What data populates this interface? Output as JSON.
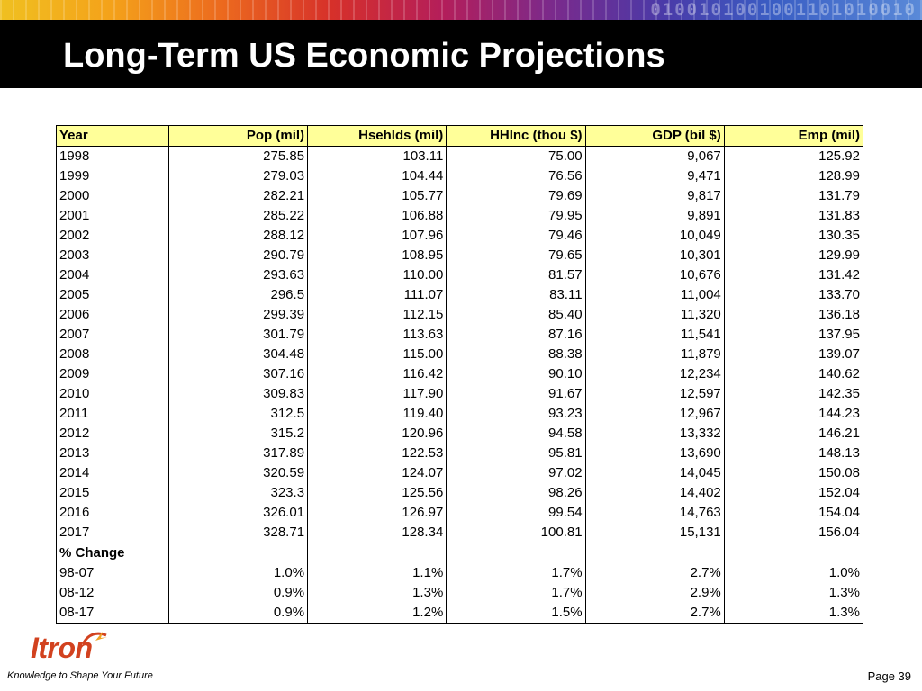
{
  "header": {
    "title": "Long-Term US Economic Projections",
    "binary_text": "0100101001001101010010"
  },
  "table": {
    "columns": [
      "Year",
      "Pop (mil)",
      "Hsehlds (mil)",
      "HHInc (thou $)",
      "GDP (bil $)",
      "Emp (mil)"
    ],
    "rows": [
      [
        "1998",
        "275.85",
        "103.11",
        "75.00",
        "9,067",
        "125.92"
      ],
      [
        "1999",
        "279.03",
        "104.44",
        "76.56",
        "9,471",
        "128.99"
      ],
      [
        "2000",
        "282.21",
        "105.77",
        "79.69",
        "9,817",
        "131.79"
      ],
      [
        "2001",
        "285.22",
        "106.88",
        "79.95",
        "9,891",
        "131.83"
      ],
      [
        "2002",
        "288.12",
        "107.96",
        "79.46",
        "10,049",
        "130.35"
      ],
      [
        "2003",
        "290.79",
        "108.95",
        "79.65",
        "10,301",
        "129.99"
      ],
      [
        "2004",
        "293.63",
        "110.00",
        "81.57",
        "10,676",
        "131.42"
      ],
      [
        "2005",
        "296.5",
        "111.07",
        "83.11",
        "11,004",
        "133.70"
      ],
      [
        "2006",
        "299.39",
        "112.15",
        "85.40",
        "11,320",
        "136.18"
      ],
      [
        "2007",
        "301.79",
        "113.63",
        "87.16",
        "11,541",
        "137.95"
      ],
      [
        "2008",
        "304.48",
        "115.00",
        "88.38",
        "11,879",
        "139.07"
      ],
      [
        "2009",
        "307.16",
        "116.42",
        "90.10",
        "12,234",
        "140.62"
      ],
      [
        "2010",
        "309.83",
        "117.90",
        "91.67",
        "12,597",
        "142.35"
      ],
      [
        "2011",
        "312.5",
        "119.40",
        "93.23",
        "12,967",
        "144.23"
      ],
      [
        "2012",
        "315.2",
        "120.96",
        "94.58",
        "13,332",
        "146.21"
      ],
      [
        "2013",
        "317.89",
        "122.53",
        "95.81",
        "13,690",
        "148.13"
      ],
      [
        "2014",
        "320.59",
        "124.07",
        "97.02",
        "14,045",
        "150.08"
      ],
      [
        "2015",
        "323.3",
        "125.56",
        "98.26",
        "14,402",
        "152.04"
      ],
      [
        "2016",
        "326.01",
        "126.97",
        "99.54",
        "14,763",
        "154.04"
      ],
      [
        "2017",
        "328.71",
        "128.34",
        "100.81",
        "15,131",
        "156.04"
      ]
    ],
    "change_heading": "% Change",
    "change_rows": [
      [
        "98-07",
        "1.0%",
        "1.1%",
        "1.7%",
        "2.7%",
        "1.0%"
      ],
      [
        "08-12",
        "0.9%",
        "1.3%",
        "1.7%",
        "2.9%",
        "1.3%"
      ],
      [
        "08-17",
        "0.9%",
        "1.2%",
        "1.5%",
        "2.7%",
        "1.3%"
      ]
    ],
    "header_color": "#ffff99"
  },
  "footer": {
    "logo_text": "Itron",
    "tagline": "Knowledge to Shape Your Future",
    "page_label": "Page 39",
    "logo_color": "#d2421f",
    "logo_icon": "spark-icon"
  }
}
